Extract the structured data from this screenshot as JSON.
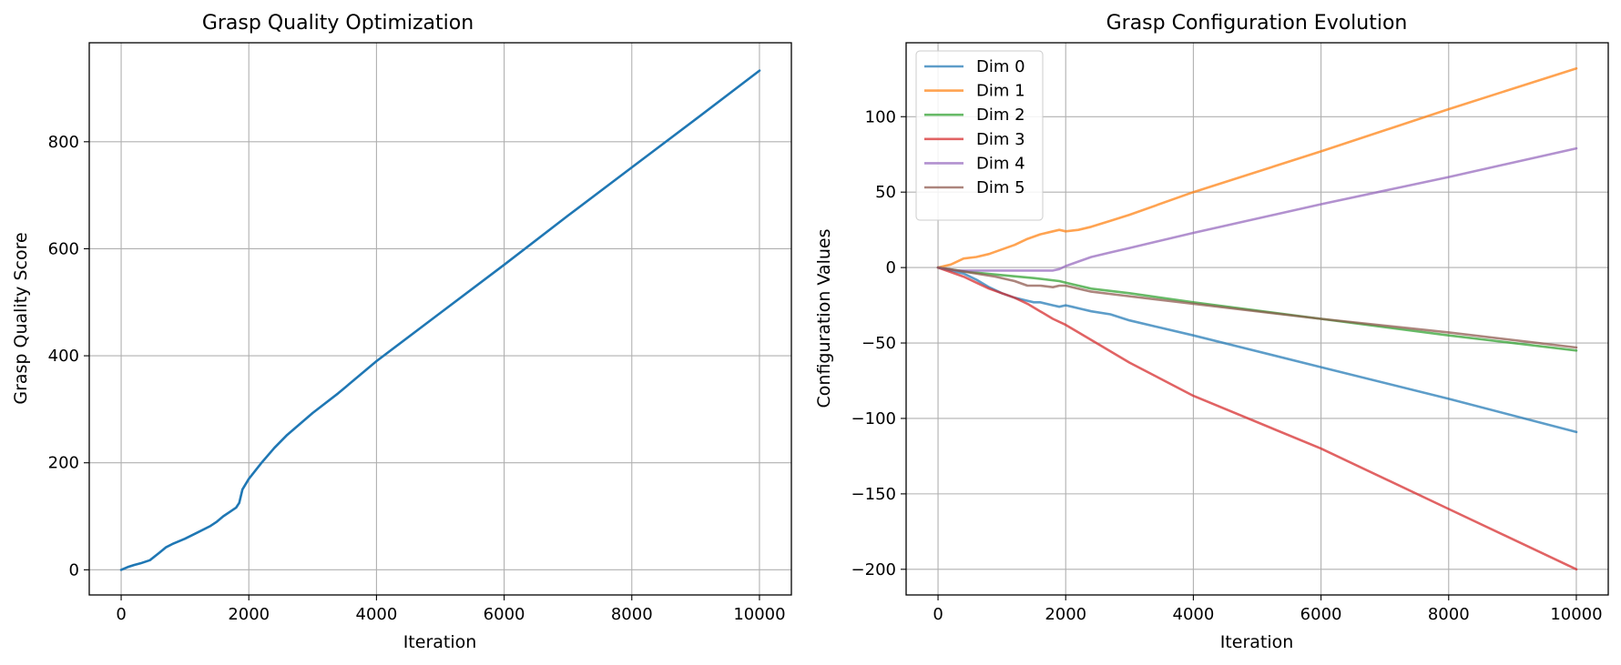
{
  "chart_data": [
    {
      "type": "line",
      "title": "Grasp Quality Optimization",
      "xlabel": "Iteration",
      "ylabel": "Grasp Quality Score",
      "xlim": [
        -500,
        10500
      ],
      "ylim": [
        -47,
        985
      ],
      "xticks": [
        0,
        2000,
        4000,
        6000,
        8000,
        10000
      ],
      "yticks": [
        0,
        200,
        400,
        600,
        800
      ],
      "grid": true,
      "series": [
        {
          "color": "#1f77b4",
          "x": [
            0,
            100,
            200,
            300,
            450,
            600,
            700,
            800,
            1000,
            1200,
            1400,
            1500,
            1600,
            1700,
            1800,
            1850,
            1900,
            2000,
            2200,
            2400,
            2600,
            3000,
            3400,
            4000,
            5000,
            6000,
            7000,
            8000,
            9000,
            10000
          ],
          "y": [
            0,
            5,
            9,
            12,
            18,
            32,
            42,
            48,
            58,
            70,
            82,
            90,
            100,
            108,
            116,
            125,
            150,
            170,
            200,
            228,
            252,
            293,
            330,
            390,
            480,
            570,
            662,
            752,
            842,
            933
          ]
        }
      ]
    },
    {
      "type": "line",
      "title": "Grasp Configuration Evolution",
      "xlabel": "Iteration",
      "ylabel": "Configuration Values",
      "xlim": [
        -500,
        10500
      ],
      "ylim": [
        -217,
        149
      ],
      "xticks": [
        0,
        2000,
        4000,
        6000,
        8000,
        10000
      ],
      "yticks": [
        -200,
        -150,
        -100,
        -50,
        0,
        50,
        100
      ],
      "grid": true,
      "legend": "top-left",
      "series": [
        {
          "name": "Dim 0",
          "color": "#1f77b4",
          "x": [
            0,
            200,
            400,
            600,
            800,
            1000,
            1200,
            1400,
            1500,
            1600,
            1800,
            1900,
            2000,
            2100,
            2200,
            2400,
            2700,
            3000,
            4000,
            6000,
            8000,
            10000
          ],
          "y": [
            0,
            -2,
            -4,
            -8,
            -13,
            -17,
            -20,
            -22,
            -23,
            -23,
            -25,
            -26,
            -25,
            -26,
            -27,
            -29,
            -31,
            -35,
            -45,
            -66,
            -87,
            -109
          ]
        },
        {
          "name": "Dim 1",
          "color": "#ff7f0e",
          "x": [
            0,
            200,
            400,
            600,
            800,
            1000,
            1200,
            1400,
            1600,
            1800,
            1900,
            2000,
            2200,
            2400,
            2700,
            3000,
            4000,
            6000,
            8000,
            10000
          ],
          "y": [
            0,
            2,
            6,
            7,
            9,
            12,
            15,
            19,
            22,
            24,
            25,
            24,
            25,
            27,
            31,
            35,
            50,
            77,
            105,
            132
          ]
        },
        {
          "name": "Dim 2",
          "color": "#2ca02c",
          "x": [
            0,
            500,
            1000,
            1500,
            1900,
            2100,
            2400,
            3000,
            4000,
            6000,
            8000,
            10000
          ],
          "y": [
            0,
            -3,
            -5,
            -7,
            -9,
            -11,
            -14,
            -17,
            -23,
            -34,
            -45,
            -55
          ]
        },
        {
          "name": "Dim 3",
          "color": "#d62728",
          "x": [
            0,
            200,
            400,
            600,
            800,
            1000,
            1200,
            1400,
            1600,
            1800,
            2000,
            2200,
            2600,
            3000,
            4000,
            6000,
            8000,
            10000
          ],
          "y": [
            0,
            -3,
            -6,
            -10,
            -14,
            -17,
            -20,
            -24,
            -29,
            -34,
            -38,
            -43,
            -53,
            -63,
            -85,
            -120,
            -160,
            -200
          ]
        },
        {
          "name": "Dim 4",
          "color": "#9467bd",
          "x": [
            0,
            300,
            600,
            1000,
            1400,
            1800,
            1900,
            2000,
            2200,
            2400,
            2700,
            3000,
            4000,
            6000,
            8000,
            10000
          ],
          "y": [
            0,
            -2,
            -2,
            -2,
            -2,
            -2,
            -1,
            1,
            4,
            7,
            10,
            13,
            23,
            42,
            60,
            79
          ]
        },
        {
          "name": "Dim 5",
          "color": "#8c564b",
          "x": [
            0,
            300,
            600,
            900,
            1200,
            1400,
            1600,
            1800,
            1900,
            2000,
            2200,
            2400,
            2800,
            3200,
            4000,
            6000,
            8000,
            10000
          ],
          "y": [
            0,
            -2,
            -4,
            -6,
            -9,
            -12,
            -12,
            -13,
            -12,
            -12,
            -14,
            -16,
            -18,
            -20,
            -24,
            -34,
            -43,
            -53
          ]
        }
      ]
    }
  ]
}
